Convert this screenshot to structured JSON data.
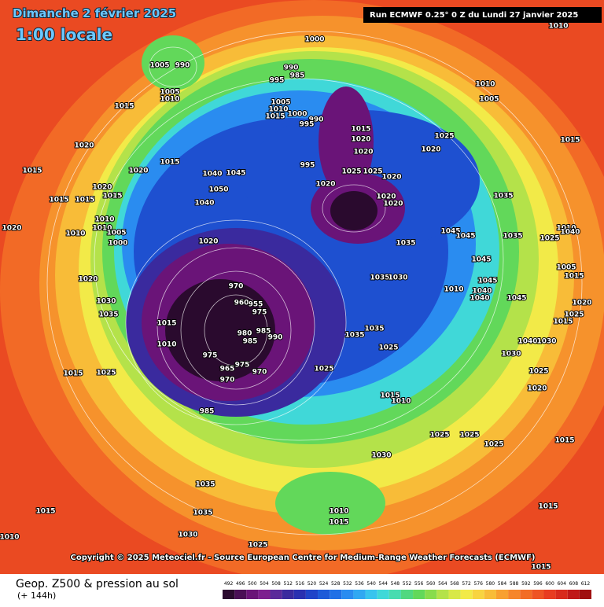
{
  "header": {
    "date": "Dimanche 2 février 2025",
    "time": "1:00 locale",
    "run": "Run ECMWF 0.25° 0 Z du Lundi 27 janvier 2025"
  },
  "copyright": "Copyright © 2025 Meteociel.fr - Source European Centre for Medium-Range Weather Forecasts (ECMWF)",
  "legend": {
    "title": "Geop. Z500 & pression au sol",
    "lead": "(+ 144h)",
    "scale": [
      492,
      496,
      500,
      504,
      508,
      512,
      516,
      520,
      524,
      528,
      532,
      536,
      540,
      544,
      548,
      552,
      556,
      560,
      564,
      568,
      572,
      576,
      580,
      584,
      588,
      592,
      596,
      600,
      604,
      608,
      612
    ],
    "colors": [
      "#2a0a2e",
      "#4a0f55",
      "#6a1478",
      "#7d1f8f",
      "#5a2a9a",
      "#3a2a9e",
      "#2a30b0",
      "#2044c8",
      "#1e5ad8",
      "#2070e6",
      "#2a8cf0",
      "#30a8f2",
      "#38c4ee",
      "#40d8d8",
      "#48dcb0",
      "#50d880",
      "#62d85a",
      "#88dc4c",
      "#b4e24a",
      "#d8e848",
      "#f2ea48",
      "#f8d440",
      "#f8bc38",
      "#f8a030",
      "#f6862a",
      "#f26c26",
      "#ee5424",
      "#e83c20",
      "#d82a1c",
      "#c01818",
      "#a01010"
    ]
  },
  "pressure_labels": [
    1010,
    1000,
    1005,
    990,
    990,
    985,
    995,
    1010,
    1005,
    1010,
    1005,
    1015,
    1005,
    1010,
    1000,
    1015,
    990,
    995,
    1015,
    1025,
    1020,
    1015,
    1020,
    1020,
    1020,
    1015,
    995,
    1020,
    1015,
    1025,
    1025,
    1020,
    1020,
    1040,
    1045,
    1020,
    1050,
    1015,
    1015,
    1015,
    1040,
    1020,
    1020,
    1035,
    1010,
    1020,
    1010,
    1005,
    1010,
    1045,
    1045,
    1035,
    1000,
    1020,
    1035,
    1010,
    1025,
    1045,
    1020,
    1035,
    1030,
    970,
    960,
    955,
    1030,
    975,
    1035,
    1015,
    985,
    980,
    985,
    990,
    1035,
    1035,
    1010,
    975,
    975,
    965,
    970,
    970,
    1025,
    1015,
    1025,
    1025,
    1015,
    1010,
    985,
    1025,
    1025,
    1025,
    1030,
    1015,
    1035,
    1035,
    1015,
    1010,
    1015,
    1030,
    1010,
    1025,
    1015,
    1015,
    1040,
    1005,
    1015,
    1020,
    1025,
    1015,
    1040,
    1030,
    1030,
    1025,
    1020,
    1010,
    1040,
    1040,
    1045,
    1045
  ]
}
